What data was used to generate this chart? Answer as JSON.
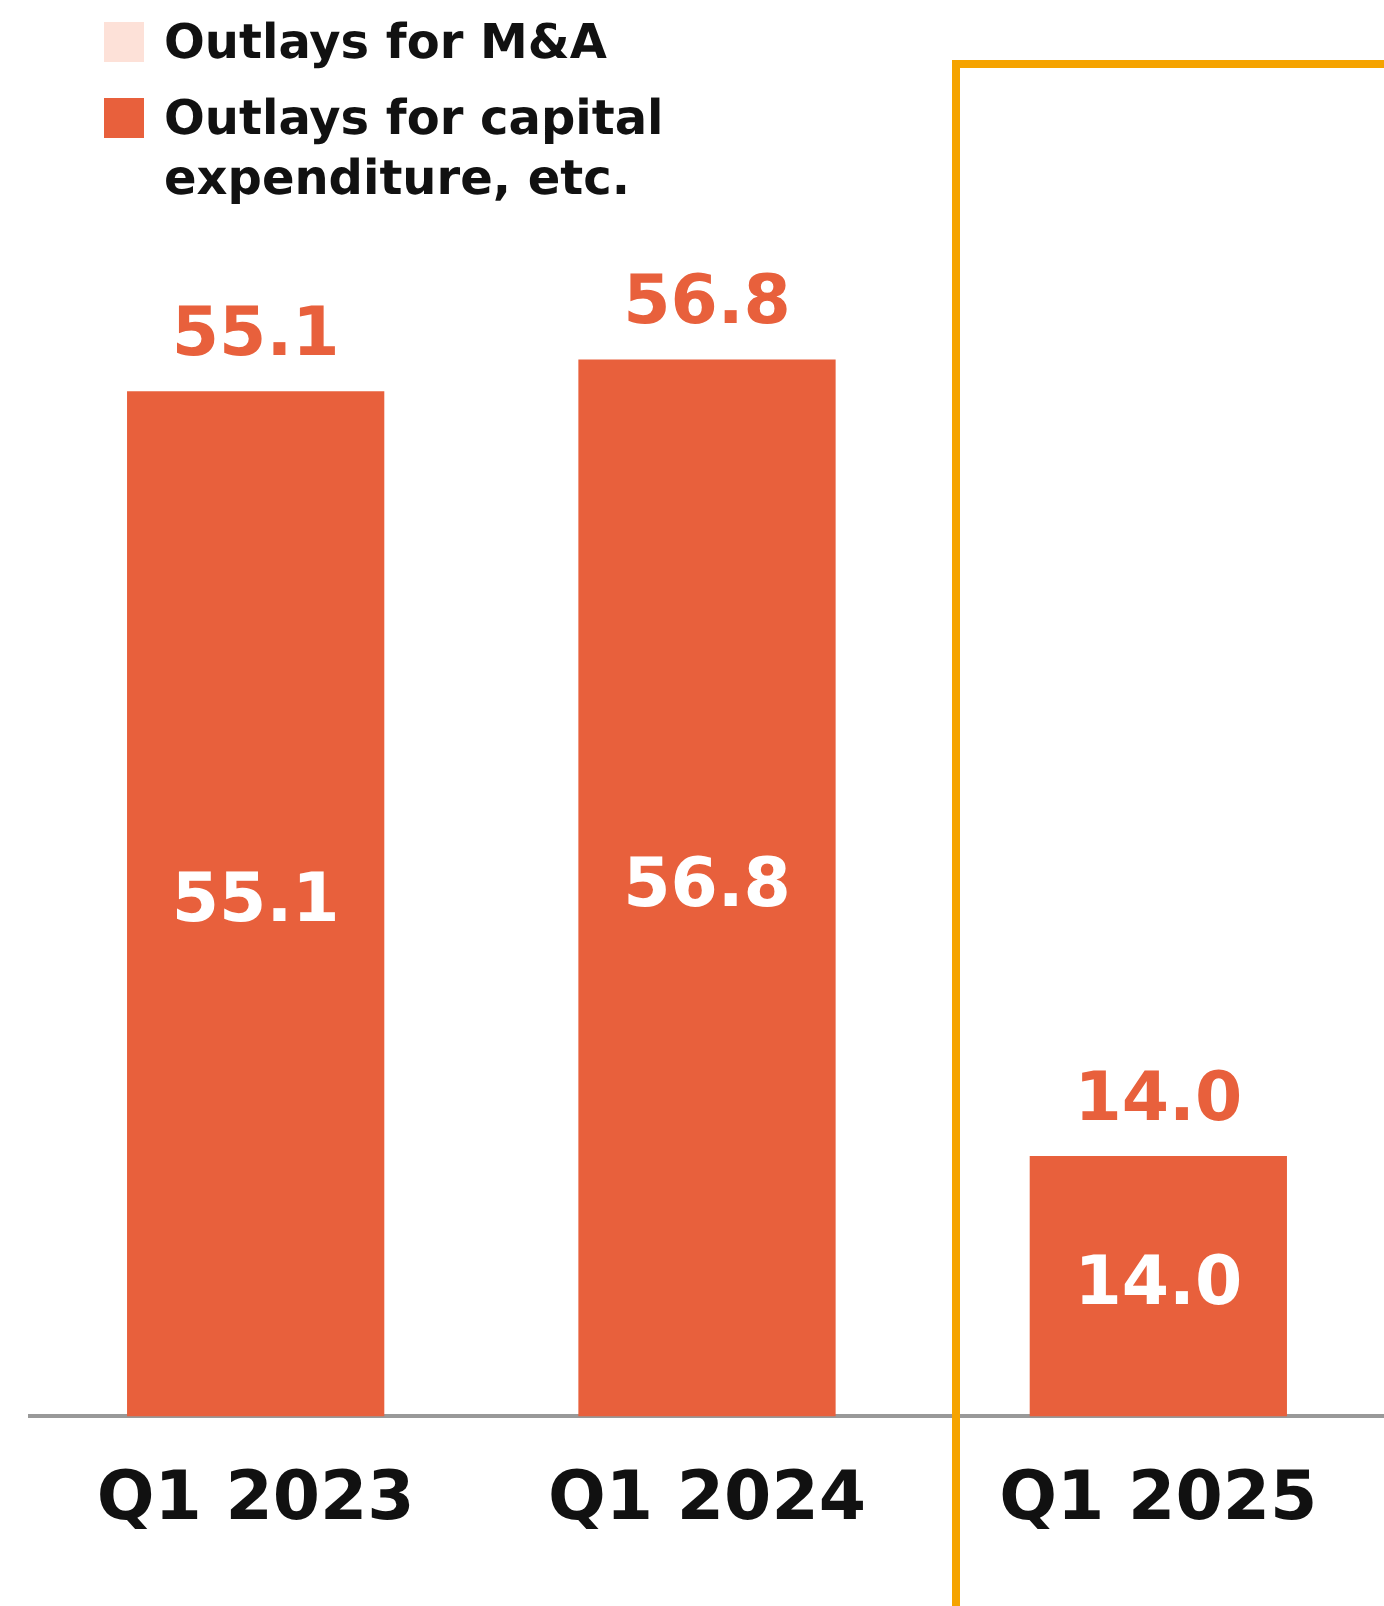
{
  "chart_data": {
    "type": "bar",
    "stacked": true,
    "legend": "top left",
    "categories": [
      "Q1 2023",
      "Q1 2024",
      "Q1 2025"
    ],
    "series": [
      {
        "name": "Outlays for capital expenditure, etc.",
        "color": "#e8603c",
        "values": [
          55.1,
          56.8,
          14.0
        ],
        "value_labels": [
          "55.1",
          "56.8",
          "14.0"
        ]
      },
      {
        "name": "Outlays for M&A",
        "color": "#fde1d8",
        "values": [
          0,
          0,
          0
        ]
      }
    ],
    "totals": [
      "55.1",
      "56.8",
      "14.0"
    ]
  }
}
